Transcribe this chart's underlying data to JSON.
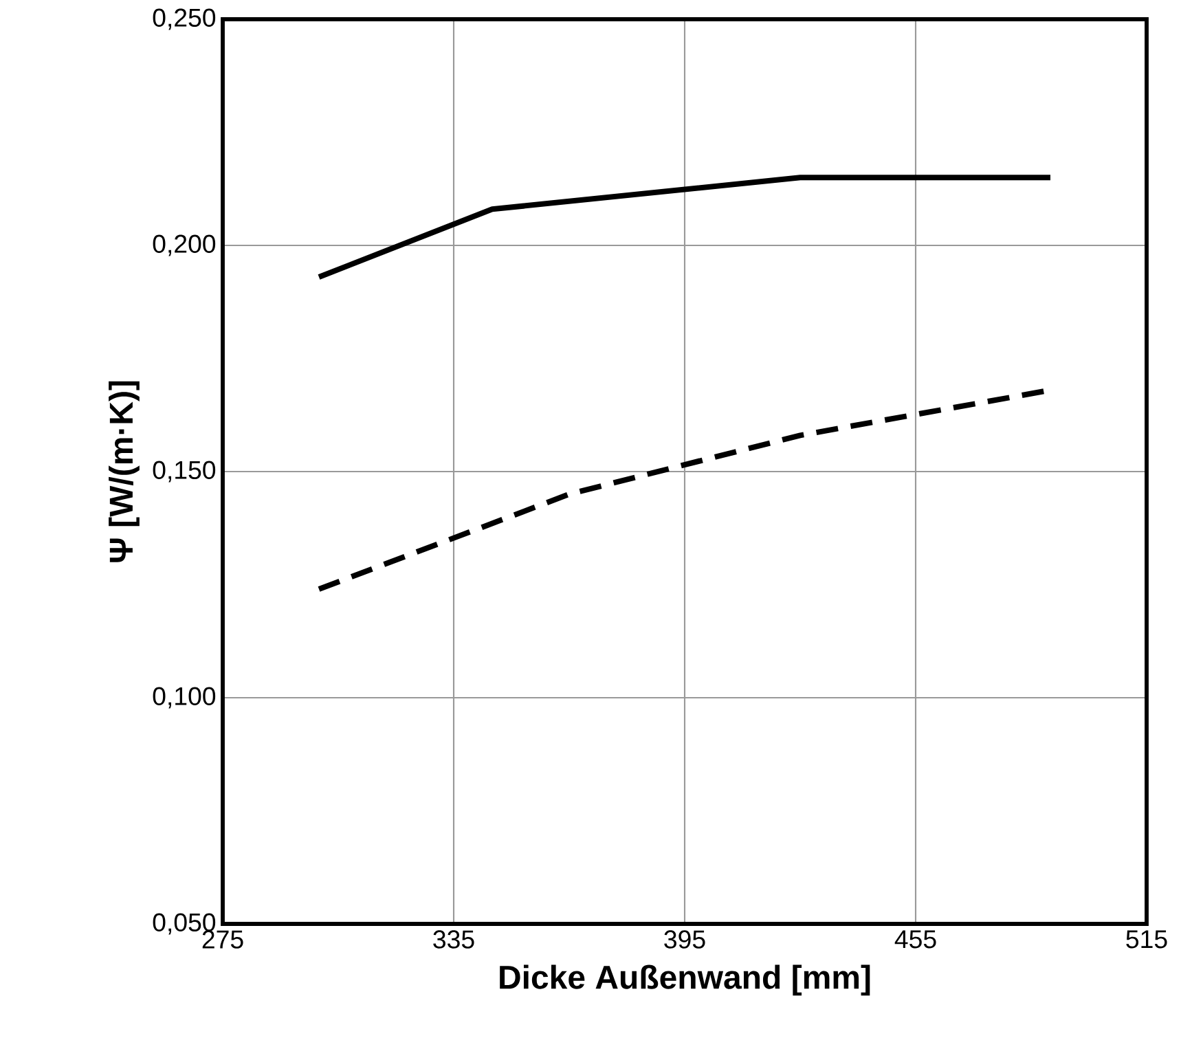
{
  "chart_data": {
    "type": "line",
    "xlabel": "Dicke Außenwand [mm]",
    "ylabel": "Ψ  [W/(m·K)]",
    "xlim": [
      275,
      515
    ],
    "xticks": [
      275,
      335,
      395,
      455,
      515
    ],
    "ylim": [
      0.05,
      0.25
    ],
    "yticks": [
      {
        "value": 0.05,
        "label": "0,050"
      },
      {
        "value": 0.1,
        "label": "0,100"
      },
      {
        "value": 0.15,
        "label": "0,150"
      },
      {
        "value": 0.2,
        "label": "0,200"
      },
      {
        "value": 0.25,
        "label": "0,250"
      }
    ],
    "grid": true,
    "marker": "none",
    "series": [
      {
        "color": "#000000",
        "line_style": "solid",
        "x": [
          300,
          345,
          425,
          490
        ],
        "values": [
          0.193,
          0.208,
          0.215,
          0.215
        ]
      },
      {
        "color": "#000000",
        "line_style": "dashed",
        "x": [
          300,
          365,
          425,
          490
        ],
        "values": [
          0.124,
          0.145,
          0.158,
          0.168
        ]
      }
    ]
  }
}
